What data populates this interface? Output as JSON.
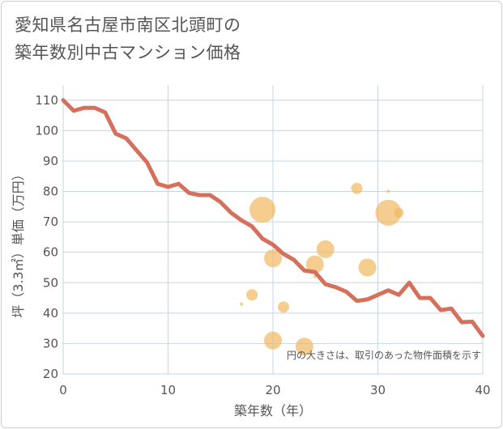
{
  "title_line1": "愛知県名古屋市南区北頭町の",
  "title_line2": "築年数別中古マンション価格",
  "colors": {
    "line": "#d4705c",
    "bubble": "#f0b860",
    "grid": "#c5d5e5",
    "plot_bg": "#ffffff"
  },
  "chart_data": {
    "type": "scatter",
    "title": "愛知県名古屋市南区北頭町の築年数別中古マンション価格",
    "xlabel": "築年数（年）",
    "ylabel": "坪（3.3㎡）単価（万円）",
    "xlim": [
      0,
      40
    ],
    "ylim": [
      20,
      115
    ],
    "x_ticks": [
      0,
      10,
      20,
      30,
      40
    ],
    "y_ticks": [
      20,
      30,
      40,
      50,
      60,
      70,
      80,
      90,
      100,
      110
    ],
    "grid": true,
    "note": "円の大きさは、取引のあった物件面積を示す",
    "line_series": {
      "x": [
        0,
        1,
        2,
        3,
        4,
        5,
        6,
        7,
        8,
        9,
        10,
        11,
        12,
        13,
        14,
        15,
        16,
        17,
        18,
        19,
        20,
        21,
        22,
        23,
        24,
        25,
        26,
        27,
        28,
        29,
        30,
        31,
        32,
        33,
        34,
        35,
        36,
        37,
        38,
        39,
        40
      ],
      "y": [
        110,
        106.5,
        107.5,
        107.5,
        106,
        99,
        97.5,
        93.5,
        89.5,
        82.5,
        81.5,
        82.5,
        79.5,
        78.8,
        78.8,
        76.5,
        73,
        70.5,
        68.5,
        64.5,
        62.5,
        59.5,
        57.5,
        54,
        53.5,
        49.5,
        48.5,
        47,
        44,
        44.5,
        46,
        47.5,
        46,
        50,
        45,
        45,
        41,
        41.5,
        37,
        37.2,
        32.5
      ]
    },
    "bubbles": [
      {
        "x": 17,
        "y": 43,
        "size": 2
      },
      {
        "x": 18,
        "y": 46,
        "size": 7
      },
      {
        "x": 19,
        "y": 74,
        "size": 16
      },
      {
        "x": 20,
        "y": 58,
        "size": 11
      },
      {
        "x": 20,
        "y": 31,
        "size": 11
      },
      {
        "x": 21,
        "y": 42,
        "size": 7
      },
      {
        "x": 23,
        "y": 29,
        "size": 11
      },
      {
        "x": 24,
        "y": 56,
        "size": 11
      },
      {
        "x": 24,
        "y": 52,
        "size": 2
      },
      {
        "x": 25,
        "y": 61,
        "size": 11
      },
      {
        "x": 28,
        "y": 81,
        "size": 7
      },
      {
        "x": 29,
        "y": 55,
        "size": 11
      },
      {
        "x": 31,
        "y": 80,
        "size": 2
      },
      {
        "x": 31,
        "y": 73,
        "size": 16
      },
      {
        "x": 32,
        "y": 73,
        "size": 6
      }
    ]
  }
}
